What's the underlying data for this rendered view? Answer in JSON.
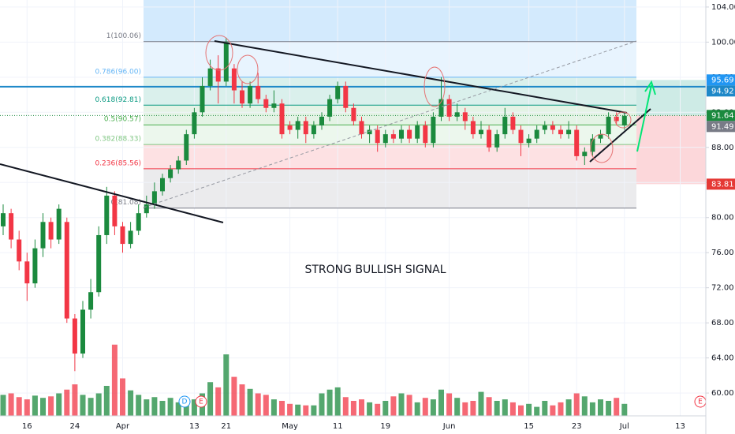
{
  "chart_data": {
    "type": "candlestick",
    "annotation": "STRONG BULLISH SIGNAL",
    "events": [
      "D",
      "E",
      "E"
    ],
    "categories": [
      null,
      null,
      null,
      "16",
      null,
      null,
      null,
      null,
      null,
      "24",
      null,
      null,
      null,
      null,
      null,
      "Apr",
      null,
      null,
      null,
      null,
      null,
      null,
      null,
      null,
      "13",
      null,
      null,
      null,
      "21",
      null,
      null,
      null,
      null,
      null,
      null,
      null,
      "May",
      null,
      null,
      null,
      null,
      null,
      "11",
      null,
      null,
      null,
      null,
      null,
      "19",
      null,
      null,
      null,
      null,
      null,
      null,
      null,
      "Jun",
      null,
      null,
      null,
      null,
      null,
      null,
      null,
      null,
      null,
      "15",
      null,
      null,
      null,
      null,
      null,
      "23",
      null,
      null,
      null,
      null,
      null,
      "Jul",
      null,
      null,
      null,
      null,
      null,
      null,
      "13"
    ],
    "open": [
      79.0,
      80.5,
      77.5,
      75.0,
      72.5,
      76.5,
      79.5,
      77.5,
      79.5,
      68.5,
      64.5,
      69.5,
      71.5,
      78.0,
      82.5,
      79.0,
      77.0,
      78.5,
      80.5,
      81.5,
      83.0,
      84.5,
      85.5,
      86.5,
      89.5,
      92.0,
      95.0,
      97.0,
      95.5,
      97.0,
      94.5,
      93.0,
      95.0,
      93.5,
      92.5,
      93.0,
      90.5,
      90.0,
      91.0,
      89.5,
      90.5,
      91.5,
      93.5,
      95.0,
      92.5,
      91.0,
      89.5,
      90.0,
      88.5,
      89.5,
      89.0,
      90.0,
      89.0,
      90.5,
      88.5,
      91.5,
      93.5,
      91.5,
      92.0,
      91.0,
      89.5,
      90.0,
      88.0,
      89.5,
      91.5,
      90.0,
      88.5,
      89.0,
      90.0,
      90.5,
      90.0,
      89.5,
      90.0,
      87.0,
      87.5,
      89.0,
      89.5,
      91.5,
      90.5,
      null,
      null,
      null,
      null,
      null,
      null,
      null
    ],
    "high": [
      81.5,
      81.0,
      78.5,
      76.0,
      77.5,
      80.5,
      80.0,
      81.5,
      80.0,
      69.0,
      70.5,
      73.0,
      79.0,
      83.5,
      83.0,
      79.5,
      79.5,
      81.5,
      82.5,
      84.0,
      85.0,
      86.0,
      87.0,
      90.0,
      92.5,
      96.0,
      98.0,
      98.5,
      100.5,
      97.5,
      95.5,
      95.5,
      96.5,
      94.0,
      94.5,
      93.5,
      91.0,
      91.5,
      91.5,
      91.0,
      92.0,
      94.0,
      95.5,
      95.5,
      93.0,
      91.5,
      90.5,
      90.5,
      90.0,
      90.0,
      90.5,
      90.5,
      91.0,
      91.0,
      92.0,
      96.0,
      94.0,
      93.0,
      92.5,
      91.5,
      91.0,
      90.5,
      90.0,
      92.5,
      92.0,
      90.5,
      89.5,
      90.5,
      91.0,
      91.0,
      90.5,
      91.0,
      90.5,
      88.0,
      89.5,
      90.0,
      92.0,
      92.0,
      92.0,
      null,
      null,
      null,
      null,
      null,
      null,
      null
    ],
    "low": [
      78.0,
      76.5,
      74.0,
      70.5,
      72.0,
      75.5,
      76.5,
      77.0,
      68.0,
      62.5,
      64.0,
      68.5,
      71.0,
      77.0,
      78.0,
      76.0,
      76.5,
      78.0,
      80.0,
      81.0,
      82.5,
      84.0,
      85.0,
      86.0,
      89.0,
      91.5,
      94.5,
      93.0,
      95.0,
      93.0,
      92.5,
      92.5,
      93.0,
      92.0,
      92.0,
      89.0,
      89.5,
      89.0,
      88.5,
      89.0,
      90.0,
      91.0,
      93.0,
      92.0,
      90.5,
      89.0,
      88.5,
      87.5,
      88.0,
      88.5,
      88.5,
      88.5,
      88.5,
      88.0,
      88.0,
      91.0,
      91.0,
      91.0,
      90.0,
      89.0,
      89.0,
      87.5,
      87.5,
      89.0,
      89.5,
      87.0,
      88.0,
      88.5,
      89.5,
      89.5,
      89.0,
      89.0,
      86.5,
      86.0,
      87.0,
      88.5,
      89.0,
      90.5,
      90.0,
      null,
      null,
      null,
      null,
      null,
      null,
      null
    ],
    "close": [
      80.5,
      77.5,
      75.0,
      72.5,
      76.5,
      79.5,
      77.5,
      81.0,
      68.5,
      64.5,
      69.5,
      71.5,
      78.0,
      82.5,
      79.0,
      77.0,
      78.5,
      80.5,
      81.5,
      83.0,
      84.5,
      85.5,
      86.5,
      89.5,
      92.0,
      95.0,
      97.0,
      95.5,
      100.0,
      94.5,
      93.0,
      95.0,
      93.5,
      92.5,
      93.0,
      89.5,
      90.0,
      91.0,
      89.5,
      90.5,
      91.5,
      93.5,
      95.0,
      92.5,
      91.0,
      89.5,
      90.0,
      88.5,
      89.5,
      89.0,
      90.0,
      89.0,
      90.5,
      88.5,
      91.5,
      93.5,
      91.5,
      92.0,
      91.0,
      89.5,
      90.0,
      88.0,
      89.5,
      91.5,
      90.0,
      88.5,
      89.0,
      90.0,
      90.5,
      90.0,
      89.5,
      90.0,
      87.0,
      87.5,
      89.0,
      89.5,
      91.5,
      91.0,
      91.6,
      null,
      null,
      null,
      null,
      null,
      null,
      null
    ],
    "volume": [
      28,
      30,
      25,
      22,
      27,
      24,
      26,
      30,
      35,
      42,
      28,
      24,
      30,
      40,
      95,
      50,
      34,
      28,
      22,
      25,
      20,
      24,
      18,
      20,
      22,
      30,
      45,
      38,
      82,
      52,
      42,
      36,
      30,
      28,
      22,
      20,
      16,
      15,
      14,
      14,
      30,
      35,
      38,
      25,
      20,
      22,
      18,
      16,
      20,
      26,
      30,
      28,
      18,
      24,
      22,
      35,
      30,
      24,
      18,
      20,
      32,
      25,
      20,
      22,
      18,
      14,
      16,
      12,
      20,
      14,
      18,
      22,
      30,
      26,
      18,
      22,
      20,
      24,
      16,
      null,
      null,
      null,
      null,
      null,
      null,
      null
    ],
    "up_color": "#1b8a3e",
    "down_color": "#f23645",
    "ylim": [
      57.4,
      104.8
    ],
    "yticks": [
      {
        "value": 60,
        "label": "60.00"
      },
      {
        "value": 64,
        "label": "64.00"
      },
      {
        "value": 68,
        "label": "68.00"
      },
      {
        "value": 72,
        "label": "72.00"
      },
      {
        "value": 76,
        "label": "76.00"
      },
      {
        "value": 80,
        "label": "80.00"
      },
      {
        "value": 84,
        "label": "84.00"
      },
      {
        "value": 88,
        "label": "88.00"
      },
      {
        "value": 92,
        "label": "92.00"
      },
      {
        "value": 96,
        "label": "96.00"
      },
      {
        "value": 100,
        "label": "100.00"
      },
      {
        "value": 104,
        "label": "104.00"
      }
    ],
    "grid": true,
    "fib_levels": [
      {
        "value": 100.06,
        "label": "1(100.06)",
        "color": "#787b86"
      },
      {
        "value": 96.0,
        "label": "0.786(96.00)",
        "color": "#64b5f6"
      },
      {
        "value": 92.81,
        "label": "0.618(92.81)",
        "color": "#089981"
      },
      {
        "value": 90.57,
        "label": "0.5(90.57)",
        "color": "#4caf50"
      },
      {
        "value": 88.33,
        "label": "0.382(88.33)",
        "color": "#81c784"
      },
      {
        "value": 85.56,
        "label": "0.236(85.56)",
        "color": "#f23645"
      },
      {
        "value": 81.08,
        "label": "0(81.08)",
        "color": "#787b86"
      }
    ],
    "price_labels": [
      {
        "value": 95.69,
        "color": "#2196f3"
      },
      {
        "value": 94.92,
        "color": "#1e88c8"
      },
      {
        "value": 91.64,
        "color": "#1b8a3e"
      },
      {
        "value": 91.49,
        "color": "#787b86"
      },
      {
        "value": 83.81,
        "color": "#e53935"
      }
    ]
  }
}
